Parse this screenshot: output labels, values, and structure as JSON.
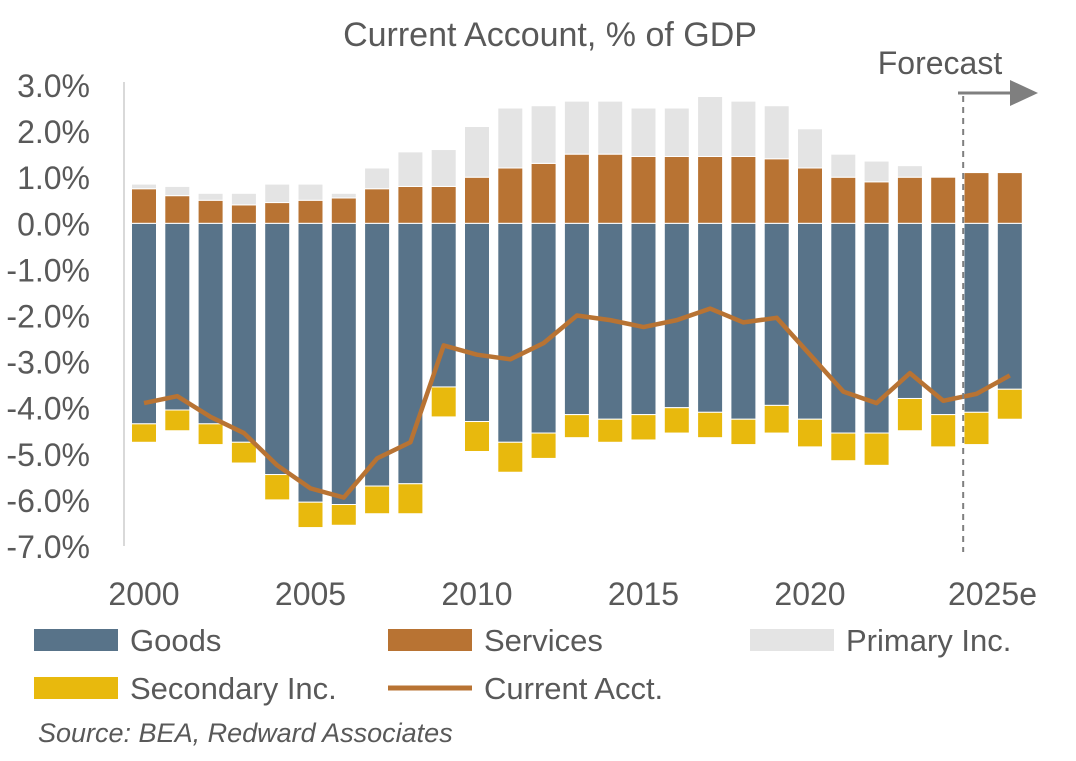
{
  "chart_data": {
    "type": "bar",
    "stacked": true,
    "title": "Current Account, % of GDP",
    "years": [
      2000,
      2001,
      2002,
      2003,
      2004,
      2005,
      2006,
      2007,
      2008,
      2009,
      2010,
      2011,
      2012,
      2013,
      2014,
      2015,
      2016,
      2017,
      2018,
      2019,
      2020,
      2021,
      2022,
      2023,
      2024,
      2025,
      2026
    ],
    "x_tick_labels": [
      "2000",
      "2005",
      "2010",
      "2015",
      "2020",
      "2025e"
    ],
    "y_tick_labels": [
      "3.0%",
      "2.0%",
      "1.0%",
      "0.0%",
      "-1.0%",
      "-2.0%",
      "-3.0%",
      "-4.0%",
      "-5.0%",
      "-6.0%",
      "-7.0%"
    ],
    "ylim": [
      -7.0,
      3.0
    ],
    "series": [
      {
        "name": "Goods",
        "kind": "bar",
        "color": "#587389",
        "values": [
          -4.35,
          -4.05,
          -4.35,
          -4.75,
          -5.45,
          -6.05,
          -6.1,
          -5.7,
          -5.65,
          -3.55,
          -4.3,
          -4.75,
          -4.55,
          -4.15,
          -4.25,
          -4.15,
          -4.0,
          -4.1,
          -4.25,
          -3.95,
          -4.25,
          -4.55,
          -4.55,
          -3.8,
          -4.15,
          -4.1,
          -3.6
        ]
      },
      {
        "name": "Services",
        "kind": "bar",
        "color": "#B87333",
        "values": [
          0.75,
          0.6,
          0.5,
          0.4,
          0.45,
          0.5,
          0.55,
          0.75,
          0.8,
          0.8,
          1.0,
          1.2,
          1.3,
          1.5,
          1.5,
          1.45,
          1.45,
          1.45,
          1.45,
          1.4,
          1.2,
          1.0,
          0.9,
          1.0,
          1.0,
          1.1,
          1.1
        ]
      },
      {
        "name": "Primary Inc.",
        "kind": "bar",
        "color": "#E4E4E4",
        "values": [
          0.1,
          0.2,
          0.15,
          0.25,
          0.4,
          0.35,
          0.1,
          0.45,
          0.75,
          0.8,
          1.1,
          1.3,
          1.25,
          1.15,
          1.15,
          1.05,
          1.05,
          1.3,
          1.2,
          1.15,
          0.85,
          0.5,
          0.45,
          0.25,
          0.0,
          0.0,
          0.0
        ]
      },
      {
        "name": "Secondary Inc.",
        "kind": "bar",
        "color": "#E8B90D",
        "values": [
          -0.4,
          -0.45,
          -0.45,
          -0.45,
          -0.55,
          -0.55,
          -0.45,
          -0.6,
          -0.65,
          -0.65,
          -0.65,
          -0.65,
          -0.55,
          -0.5,
          -0.5,
          -0.55,
          -0.55,
          -0.55,
          -0.55,
          -0.6,
          -0.6,
          -0.6,
          -0.7,
          -0.7,
          -0.7,
          -0.7,
          -0.65
        ]
      },
      {
        "name": "Current Acct.",
        "kind": "line",
        "color": "#B87333",
        "values": [
          -3.9,
          -3.75,
          -4.2,
          -4.55,
          -5.25,
          -5.75,
          -5.95,
          -5.1,
          -4.75,
          -2.65,
          -2.85,
          -2.95,
          -2.6,
          -2.0,
          -2.1,
          -2.25,
          -2.1,
          -1.85,
          -2.15,
          -2.05,
          -2.85,
          -3.65,
          -3.9,
          -3.25,
          -3.85,
          -3.7,
          -3.3
        ]
      }
    ],
    "forecast_label": "Forecast",
    "forecast_start_year": 2024.6,
    "legend_position": "bottom"
  },
  "source": "Source: BEA, Redward Associates"
}
